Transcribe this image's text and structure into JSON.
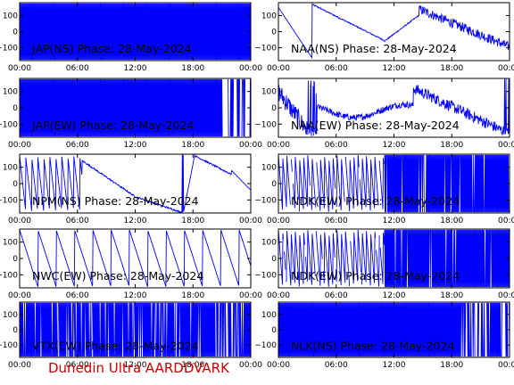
{
  "footer": {
    "text": "Dunedin Ultra AARDDVARK",
    "color": "#cc0000"
  },
  "colors": {
    "trace": "#0000ff",
    "axes": "#000000",
    "background": "#ffffff"
  },
  "chart_data": [
    {
      "id": "jap-ns",
      "type": "line",
      "title": "JAP(NS) Phase: 28-May-2024",
      "xticks": [
        "00:00",
        "06:00",
        "12:00",
        "18:00",
        "00:00"
      ],
      "yticks": [
        100,
        0,
        -100
      ],
      "ylim": [
        -180,
        180
      ],
      "xlim": [
        0,
        24
      ],
      "pattern": "saturated"
    },
    {
      "id": "naa-ns",
      "type": "line",
      "title": "NAA(NS) Phase: 28-May-2024",
      "xticks": [
        "00:00",
        "06:00",
        "12:00",
        "18:00",
        "00:00"
      ],
      "yticks": [
        100,
        0,
        -100
      ],
      "ylim": [
        -180,
        180
      ],
      "xlim": [
        0,
        24
      ],
      "pattern": "naa_ns"
    },
    {
      "id": "jap-ew",
      "type": "line",
      "title": "JAP(EW) Phase: 28-May-2024",
      "xticks": [
        "00:00",
        "06:00",
        "12:00",
        "18:00",
        "00:00"
      ],
      "yticks": [
        100,
        0,
        -100
      ],
      "ylim": [
        -180,
        180
      ],
      "xlim": [
        0,
        24
      ],
      "pattern": "saturated_gaps"
    },
    {
      "id": "naa-ew",
      "type": "line",
      "title": "NAA(EW) Phase: 28-May-2024",
      "xticks": [
        "00:00",
        "06:00",
        "12:00",
        "18:00",
        "00:00"
      ],
      "yticks": [
        100,
        0,
        -100
      ],
      "ylim": [
        -180,
        180
      ],
      "xlim": [
        0,
        24
      ],
      "pattern": "naa_ew"
    },
    {
      "id": "npm-ns",
      "type": "line",
      "title": "NPM(NS) Phase: 28-May-2024",
      "xticks": [
        "00:00",
        "06:00",
        "12:00",
        "18:00",
        "00:00"
      ],
      "yticks": [
        100,
        0,
        -100
      ],
      "ylim": [
        -180,
        180
      ],
      "xlim": [
        0,
        24
      ],
      "pattern": "npm_ns"
    },
    {
      "id": "ndk-ew1",
      "type": "line",
      "title": "NDK(EW) Phase: 28-May-2024",
      "xticks": [
        "00:00",
        "06:00",
        "12:00",
        "18:00",
        "00:00"
      ],
      "yticks": [
        100,
        0,
        -100
      ],
      "ylim": [
        -180,
        180
      ],
      "xlim": [
        0,
        24
      ],
      "pattern": "sawtooth_dense"
    },
    {
      "id": "nwc-ew",
      "type": "line",
      "title": "NWC(EW) Phase: 28-May-2024",
      "xticks": [
        "00:00",
        "06:00",
        "12:00",
        "18:00",
        "00:00"
      ],
      "yticks": [
        100,
        0,
        -100
      ],
      "ylim": [
        -180,
        180
      ],
      "xlim": [
        0,
        24
      ],
      "pattern": "nwc_sawtooth"
    },
    {
      "id": "ndk-ew2",
      "type": "line",
      "title": "NDK(EW) Phase: 28-May-2024",
      "xticks": [
        "00:00",
        "06:00",
        "12:00",
        "18:00",
        "00:00"
      ],
      "yticks": [
        100,
        0,
        -100
      ],
      "ylim": [
        -180,
        180
      ],
      "xlim": [
        0,
        24
      ],
      "pattern": "sawtooth_dense"
    },
    {
      "id": "vtx-ew",
      "type": "line",
      "title": "VTX(EW) Phase: 28-May-2024",
      "xticks": [
        "00:00",
        "06:00",
        "12:00",
        "18:00",
        "00:00"
      ],
      "yticks": [
        100,
        0,
        -100
      ],
      "ylim": [
        -180,
        180
      ],
      "xlim": [
        0,
        24
      ],
      "pattern": "saturated_gaps_many"
    },
    {
      "id": "nlk-ns",
      "type": "line",
      "title": "NLK(NS) Phase: 28-May-2024",
      "xticks": [
        "00:00",
        "06:00",
        "12:00",
        "18:00",
        "00:00"
      ],
      "yticks": [
        100,
        0,
        -100
      ],
      "ylim": [
        -180,
        180
      ],
      "xlim": [
        0,
        24
      ],
      "pattern": "saturated_tail"
    }
  ]
}
